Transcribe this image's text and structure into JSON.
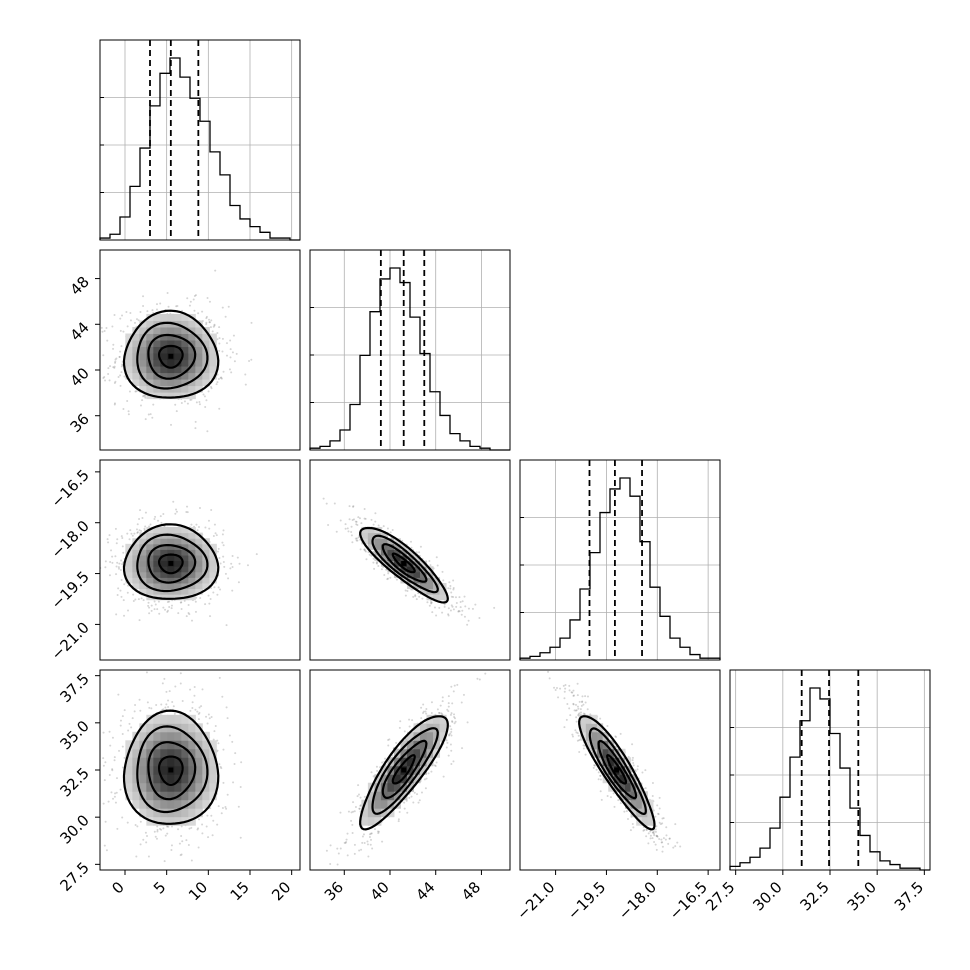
{
  "chart_data": {
    "type": "corner",
    "parameters": [
      {
        "ticks": [
          "0",
          "5",
          "10",
          "15",
          "20"
        ],
        "tick_values": [
          0,
          5,
          10,
          15,
          20
        ],
        "range": [
          -3,
          21
        ],
        "quantiles": [
          3.0,
          5.5,
          8.8
        ]
      },
      {
        "ticks": [
          "36",
          "40",
          "44",
          "48"
        ],
        "tick_values": [
          36,
          40,
          44,
          48
        ],
        "range": [
          33,
          50.5
        ],
        "quantiles": [
          39.2,
          41.2,
          43.0
        ]
      },
      {
        "ticks": [
          "−21.0",
          "−19.5",
          "−18.0",
          "−16.5"
        ],
        "tick_values": [
          -21.0,
          -19.5,
          -18.0,
          -16.5
        ],
        "range": [
          -22.05,
          -16.15
        ],
        "quantiles": [
          -20.0,
          -19.25,
          -18.45
        ]
      },
      {
        "ticks": [
          "27.5",
          "30.0",
          "32.5",
          "35.0",
          "37.5"
        ],
        "tick_values": [
          27.5,
          30.0,
          32.5,
          35.0,
          37.5
        ],
        "range": [
          27.2,
          37.8
        ],
        "quantiles": [
          31.0,
          32.45,
          34.0
        ]
      }
    ],
    "histograms": [
      [
        1,
        3,
        12,
        28,
        48,
        70,
        87,
        95,
        85,
        74,
        62,
        46,
        34,
        18,
        11,
        7,
        4,
        1,
        1,
        0
      ],
      [
        1,
        2,
        5,
        11,
        25,
        52,
        76,
        94,
        100,
        92,
        73,
        53,
        32,
        19,
        9,
        5,
        2,
        1,
        0,
        0
      ],
      [
        1,
        2,
        4,
        7,
        12,
        22,
        39,
        59,
        81,
        94,
        100,
        90,
        65,
        40,
        24,
        12,
        7,
        3,
        1,
        1
      ],
      [
        2,
        4,
        7,
        12,
        23,
        40,
        62,
        82,
        100,
        94,
        75,
        56,
        34,
        19,
        10,
        5,
        3,
        1,
        1,
        0
      ]
    ],
    "pairs": [
      {
        "row": 1,
        "col": 0,
        "mean": [
          5.5,
          41.2
        ],
        "sd": [
          2.8,
          1.9
        ],
        "rho": 0.0
      },
      {
        "row": 2,
        "col": 0,
        "mean": [
          5.5,
          -19.2
        ],
        "sd": [
          2.8,
          0.55
        ],
        "rho": 0.0
      },
      {
        "row": 2,
        "col": 1,
        "mean": [
          41.2,
          -19.2
        ],
        "sd": [
          1.9,
          0.55
        ],
        "rho": -0.87
      },
      {
        "row": 3,
        "col": 0,
        "mean": [
          5.5,
          32.5
        ],
        "sd": [
          2.8,
          1.5
        ],
        "rho": 0.0
      },
      {
        "row": 3,
        "col": 1,
        "mean": [
          41.2,
          32.5
        ],
        "sd": [
          1.9,
          1.5
        ],
        "rho": 0.85
      },
      {
        "row": 3,
        "col": 2,
        "mean": [
          -19.2,
          32.5
        ],
        "sd": [
          0.55,
          1.5
        ],
        "rho": -0.9
      }
    ],
    "contour_levels": [
      0.5,
      1.0,
      1.5,
      2.0
    ],
    "colors": {
      "line": "#000000",
      "grid": "#b0b0b0",
      "points": "#7f7f7f",
      "density_dark": "#000000"
    },
    "grid": true
  }
}
